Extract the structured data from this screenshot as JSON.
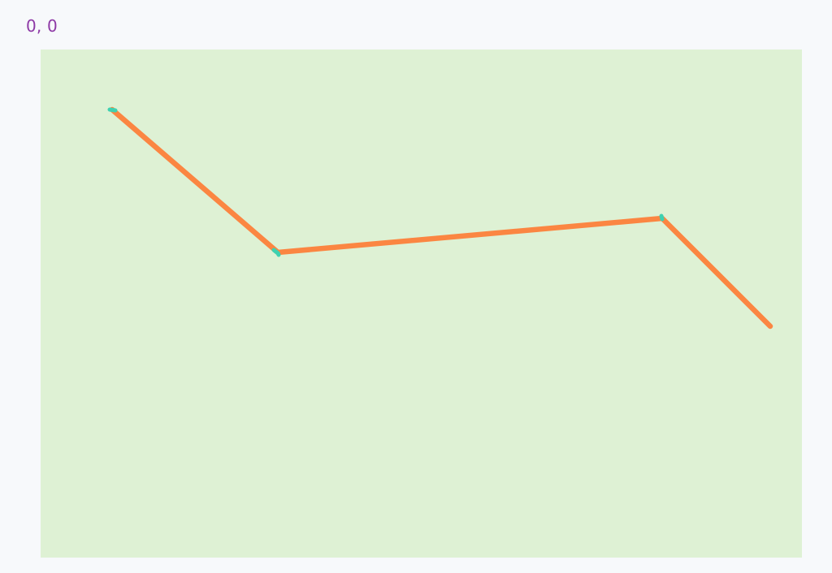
{
  "readout": {
    "coordinates": "0, 0"
  },
  "canvas": {
    "background_color": "#def1d4",
    "stroke_color": "#fb8642",
    "marker_color": "#3ed1b0"
  }
}
